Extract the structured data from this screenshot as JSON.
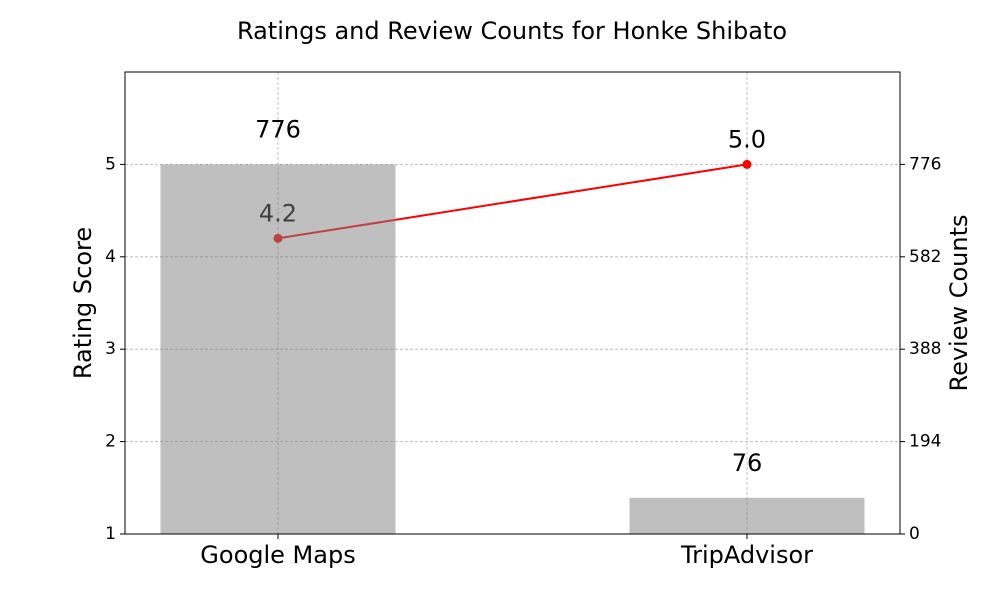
{
  "chart_data": {
    "type": "combo",
    "title": "Ratings and Review Counts for Honke Shibato",
    "categories": [
      "Google Maps",
      "TripAdvisor"
    ],
    "y_label": "Rating Score",
    "y2_label": "Review Counts",
    "ylim": [
      1,
      6
    ],
    "yticks": [
      1,
      2,
      3,
      4,
      5
    ],
    "y2lim": [
      0,
      970
    ],
    "y2ticks": [
      0,
      194,
      388,
      582,
      776
    ],
    "grid": true,
    "series": [
      {
        "type": "line",
        "values": [
          4.2,
          5.0
        ],
        "value_labels": [
          "4.2",
          "5.0"
        ],
        "color": "#ff0000"
      },
      {
        "type": "bar",
        "axis": "y2",
        "values": [
          776,
          76
        ],
        "color": "#808080"
      }
    ]
  }
}
